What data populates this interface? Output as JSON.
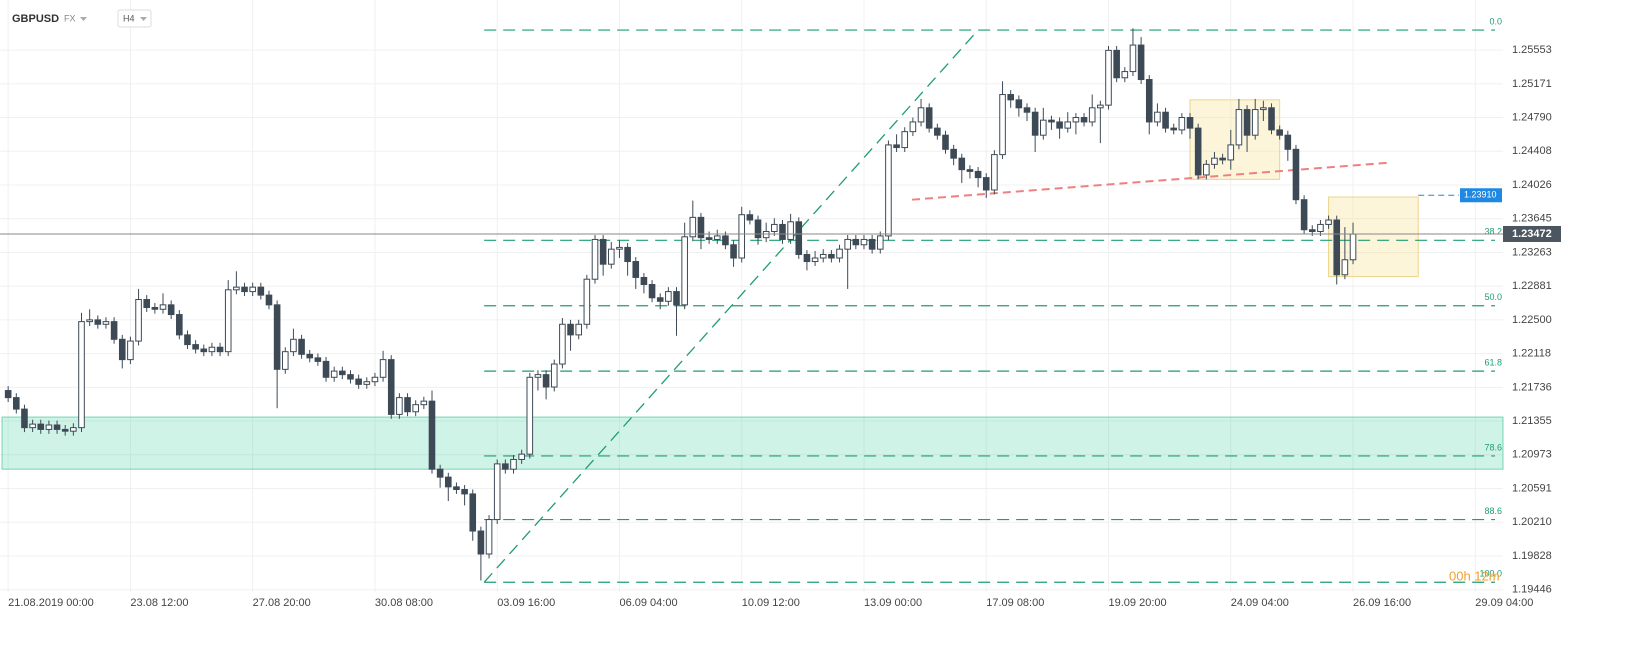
{
  "header": {
    "symbol": "GBPUSD",
    "market": "FX",
    "interval": "H4"
  },
  "chart_data": {
    "type": "candlestick",
    "xlim": [
      -1,
      183.4
    ],
    "ylim": [
      1.1942,
      1.2612
    ],
    "grid": true,
    "up_color": "#ffffff",
    "down_color": "#3d4a56",
    "xticks": [
      {
        "value": 0,
        "label": "21.08.2019 00:00"
      },
      {
        "value": 15,
        "label": "23.08 12:00"
      },
      {
        "value": 30,
        "label": "27.08 20:00"
      },
      {
        "value": 45,
        "label": "30.08 08:00"
      },
      {
        "value": 60,
        "label": "03.09 16:00"
      },
      {
        "value": 75,
        "label": "06.09 04:00"
      },
      {
        "value": 90,
        "label": "10.09 12:00"
      },
      {
        "value": 105,
        "label": "13.09 00:00"
      },
      {
        "value": 120,
        "label": "17.09 08:00"
      },
      {
        "value": 135,
        "label": "19.09 20:00"
      },
      {
        "value": 150,
        "label": "24.09 04:00"
      },
      {
        "value": 165,
        "label": "26.09 16:00"
      },
      {
        "value": 180,
        "label": "29.09 04:00"
      }
    ],
    "yticks": [
      1.25553,
      1.25171,
      {
        "value": 1.2479,
        "label": "1.24790"
      },
      1.24408,
      1.24026,
      1.23645,
      1.23263,
      1.22881,
      {
        "value": 1.225,
        "label": "1.22500"
      },
      1.22118,
      1.21736,
      1.21355,
      1.20973,
      1.20591,
      {
        "value": 1.2021,
        "label": "1.20210"
      },
      1.19828,
      1.19446
    ],
    "candles": [
      [
        1.217,
        1.2175,
        1.2157,
        1.2162
      ],
      [
        1.2162,
        1.2167,
        1.2144,
        1.2149
      ],
      [
        1.2149,
        1.2154,
        1.2123,
        1.2128
      ],
      [
        1.2128,
        1.2137,
        1.2123,
        1.2132
      ],
      [
        1.2132,
        1.2137,
        1.2121,
        1.2126
      ],
      [
        1.2126,
        1.2136,
        1.2121,
        1.2131
      ],
      [
        1.2131,
        1.2136,
        1.2121,
        1.2126
      ],
      [
        1.2126,
        1.2131,
        1.2119,
        1.2124
      ],
      [
        1.2124,
        1.2133,
        1.2119,
        1.2128
      ],
      [
        1.2128,
        1.2258,
        1.2123,
        1.2248
      ],
      [
        1.2248,
        1.2262,
        1.2243,
        1.225
      ],
      [
        1.225,
        1.2255,
        1.224,
        1.2245
      ],
      [
        1.2245,
        1.2253,
        1.224,
        1.2248
      ],
      [
        1.2248,
        1.2253,
        1.2223,
        1.2228
      ],
      [
        1.2228,
        1.2233,
        1.2195,
        1.2205
      ],
      [
        1.2205,
        1.2231,
        1.22,
        1.2226
      ],
      [
        1.2226,
        1.2285,
        1.2221,
        1.2273
      ],
      [
        1.2273,
        1.2278,
        1.2259,
        1.2264
      ],
      [
        1.2264,
        1.2269,
        1.2257,
        1.2262
      ],
      [
        1.2262,
        1.228,
        1.2257,
        1.2267
      ],
      [
        1.2267,
        1.2272,
        1.2251,
        1.2256
      ],
      [
        1.2256,
        1.2261,
        1.2228,
        1.2233
      ],
      [
        1.2233,
        1.2238,
        1.2217,
        1.2222
      ],
      [
        1.2222,
        1.2227,
        1.2212,
        1.2217
      ],
      [
        1.2217,
        1.2222,
        1.2209,
        1.2214
      ],
      [
        1.2214,
        1.2224,
        1.2209,
        1.2219
      ],
      [
        1.2219,
        1.2224,
        1.2209,
        1.2214
      ],
      [
        1.2214,
        1.2295,
        1.2209,
        1.2284
      ],
      [
        1.2284,
        1.2305,
        1.2279,
        1.2287
      ],
      [
        1.2287,
        1.2292,
        1.2277,
        1.2282
      ],
      [
        1.2282,
        1.2292,
        1.2277,
        1.2287
      ],
      [
        1.2287,
        1.2292,
        1.2273,
        1.2278
      ],
      [
        1.2278,
        1.2283,
        1.2262,
        1.2267
      ],
      [
        1.2267,
        1.2272,
        1.215,
        1.2194
      ],
      [
        1.2194,
        1.2219,
        1.2189,
        1.2214
      ],
      [
        1.2214,
        1.224,
        1.2209,
        1.2228
      ],
      [
        1.2228,
        1.2233,
        1.2206,
        1.2211
      ],
      [
        1.2211,
        1.2216,
        1.2202,
        1.2207
      ],
      [
        1.2207,
        1.2212,
        1.2198,
        1.2203
      ],
      [
        1.2203,
        1.2208,
        1.218,
        1.2185
      ],
      [
        1.2185,
        1.2197,
        1.218,
        1.2192
      ],
      [
        1.2192,
        1.2197,
        1.2183,
        1.2188
      ],
      [
        1.2188,
        1.2193,
        1.2178,
        1.2183
      ],
      [
        1.2183,
        1.2188,
        1.2172,
        1.2177
      ],
      [
        1.2177,
        1.2185,
        1.2172,
        1.218
      ],
      [
        1.218,
        1.219,
        1.2175,
        1.2185
      ],
      [
        1.2185,
        1.2215,
        1.218,
        1.2205
      ],
      [
        1.2205,
        1.221,
        1.2138,
        1.2143
      ],
      [
        1.2143,
        1.2167,
        1.2138,
        1.2162
      ],
      [
        1.2162,
        1.2167,
        1.2141,
        1.2146
      ],
      [
        1.2146,
        1.2159,
        1.2141,
        1.2154
      ],
      [
        1.2154,
        1.2163,
        1.2149,
        1.2158
      ],
      [
        1.2158,
        1.217,
        1.2076,
        1.2081
      ],
      [
        1.2081,
        1.2086,
        1.206,
        1.2072
      ],
      [
        1.2072,
        1.2077,
        1.2045,
        1.2061
      ],
      [
        1.2061,
        1.2066,
        1.2053,
        1.2058
      ],
      [
        1.2058,
        1.2063,
        1.204,
        1.2053
      ],
      [
        1.2053,
        1.2058,
        1.2,
        1.2011
      ],
      [
        1.2011,
        1.2016,
        1.1955,
        1.1985
      ],
      [
        1.1985,
        1.2029,
        1.198,
        1.2024
      ],
      [
        1.2024,
        1.2092,
        1.2019,
        1.2087
      ],
      [
        1.2087,
        1.2092,
        1.2076,
        1.2081
      ],
      [
        1.2081,
        1.2097,
        1.2076,
        1.2092
      ],
      [
        1.2092,
        1.2103,
        1.2087,
        1.2098
      ],
      [
        1.2098,
        1.219,
        1.2093,
        1.2185
      ],
      [
        1.2185,
        1.2193,
        1.217,
        1.2188
      ],
      [
        1.2188,
        1.2193,
        1.216,
        1.2174
      ],
      [
        1.2174,
        1.2205,
        1.2169,
        1.22
      ],
      [
        1.22,
        1.2252,
        1.2195,
        1.2245
      ],
      [
        1.2245,
        1.225,
        1.2215,
        1.2233
      ],
      [
        1.2233,
        1.225,
        1.2228,
        1.2245
      ],
      [
        1.2245,
        1.2301,
        1.224,
        1.2296
      ],
      [
        1.2296,
        1.2346,
        1.2291,
        1.2341
      ],
      [
        1.2341,
        1.2346,
        1.23,
        1.2313
      ],
      [
        1.2313,
        1.2338,
        1.2308,
        1.233
      ],
      [
        1.233,
        1.234,
        1.232,
        1.2332
      ],
      [
        1.2332,
        1.2337,
        1.23,
        1.2316
      ],
      [
        1.2316,
        1.2321,
        1.2285,
        1.2298
      ],
      [
        1.2298,
        1.2303,
        1.228,
        1.229
      ],
      [
        1.229,
        1.2295,
        1.227,
        1.2275
      ],
      [
        1.2275,
        1.228,
        1.2262,
        1.2271
      ],
      [
        1.2271,
        1.2287,
        1.2266,
        1.2282
      ],
      [
        1.2282,
        1.2287,
        1.2232,
        1.2267
      ],
      [
        1.2267,
        1.236,
        1.2262,
        1.2344
      ],
      [
        1.2344,
        1.2385,
        1.2339,
        1.2366
      ],
      [
        1.2366,
        1.2371,
        1.233,
        1.2343
      ],
      [
        1.2343,
        1.235,
        1.2336,
        1.2341
      ],
      [
        1.2341,
        1.2352,
        1.2336,
        1.2345
      ],
      [
        1.2345,
        1.235,
        1.233,
        1.2335
      ],
      [
        1.2335,
        1.234,
        1.231,
        1.232
      ],
      [
        1.232,
        1.2378,
        1.2315,
        1.2369
      ],
      [
        1.2369,
        1.2374,
        1.2358,
        1.2363
      ],
      [
        1.2363,
        1.2368,
        1.2335,
        1.2343
      ],
      [
        1.2343,
        1.236,
        1.2338,
        1.235
      ],
      [
        1.235,
        1.2365,
        1.2345,
        1.2358
      ],
      [
        1.2358,
        1.2363,
        1.2336,
        1.2341
      ],
      [
        1.2341,
        1.237,
        1.2336,
        1.2361
      ],
      [
        1.2361,
        1.2366,
        1.2319,
        1.2324
      ],
      [
        1.2324,
        1.2329,
        1.2306,
        1.2316
      ],
      [
        1.2316,
        1.2328,
        1.2311,
        1.232
      ],
      [
        1.232,
        1.233,
        1.2315,
        1.2324
      ],
      [
        1.2324,
        1.2329,
        1.2315,
        1.232
      ],
      [
        1.232,
        1.2335,
        1.2315,
        1.233
      ],
      [
        1.233,
        1.2346,
        1.2285,
        1.2341
      ],
      [
        1.2341,
        1.2346,
        1.233,
        1.2335
      ],
      [
        1.2335,
        1.2346,
        1.233,
        1.2341
      ],
      [
        1.2341,
        1.2346,
        1.2325,
        1.233
      ],
      [
        1.233,
        1.235,
        1.2325,
        1.2345
      ],
      [
        1.2345,
        1.2453,
        1.234,
        1.2448
      ],
      [
        1.2448,
        1.246,
        1.244,
        1.2445
      ],
      [
        1.2445,
        1.2468,
        1.244,
        1.2463
      ],
      [
        1.2463,
        1.2479,
        1.2458,
        1.2474
      ],
      [
        1.2474,
        1.25,
        1.2469,
        1.249
      ],
      [
        1.249,
        1.2495,
        1.2462,
        1.2467
      ],
      [
        1.2467,
        1.2472,
        1.2454,
        1.2459
      ],
      [
        1.2459,
        1.2464,
        1.2438,
        1.2443
      ],
      [
        1.2443,
        1.2448,
        1.2425,
        1.2433
      ],
      [
        1.2433,
        1.2438,
        1.2405,
        1.242
      ],
      [
        1.242,
        1.2425,
        1.241,
        1.2418
      ],
      [
        1.2418,
        1.2423,
        1.24,
        1.2411
      ],
      [
        1.2411,
        1.2416,
        1.2388,
        1.2397
      ],
      [
        1.2397,
        1.2442,
        1.2392,
        1.2437
      ],
      [
        1.2437,
        1.252,
        1.2432,
        1.2505
      ],
      [
        1.2505,
        1.251,
        1.249,
        1.2499
      ],
      [
        1.2499,
        1.2504,
        1.248,
        1.249
      ],
      [
        1.249,
        1.2495,
        1.2475,
        1.2485
      ],
      [
        1.2485,
        1.249,
        1.244,
        1.2459
      ],
      [
        1.2459,
        1.249,
        1.2454,
        1.2476
      ],
      [
        1.2476,
        1.2481,
        1.2465,
        1.2474
      ],
      [
        1.2474,
        1.2479,
        1.2455,
        1.2467
      ],
      [
        1.2467,
        1.2485,
        1.2462,
        1.2474
      ],
      [
        1.2474,
        1.2484,
        1.246,
        1.2479
      ],
      [
        1.2479,
        1.2484,
        1.2469,
        1.2474
      ],
      [
        1.2474,
        1.2505,
        1.2469,
        1.249
      ],
      [
        1.249,
        1.2498,
        1.245,
        1.2493
      ],
      [
        1.2493,
        1.256,
        1.2488,
        1.2555
      ],
      [
        1.2555,
        1.256,
        1.2519,
        1.2524
      ],
      [
        1.2524,
        1.2536,
        1.2519,
        1.2531
      ],
      [
        1.2531,
        1.258,
        1.2526,
        1.2561
      ],
      [
        1.2561,
        1.257,
        1.2517,
        1.2522
      ],
      [
        1.2522,
        1.2527,
        1.246,
        1.2474
      ],
      [
        1.2474,
        1.2495,
        1.2469,
        1.2485
      ],
      [
        1.2485,
        1.249,
        1.2462,
        1.2467
      ],
      [
        1.2467,
        1.2472,
        1.246,
        1.2465
      ],
      [
        1.2465,
        1.2484,
        1.246,
        1.2479
      ],
      [
        1.2479,
        1.2484,
        1.2455,
        1.2467
      ],
      [
        1.2467,
        1.2472,
        1.2409,
        1.2414
      ],
      [
        1.2414,
        1.2431,
        1.2409,
        1.2426
      ],
      [
        1.2426,
        1.244,
        1.2421,
        1.2433
      ],
      [
        1.2433,
        1.2438,
        1.2426,
        1.2431
      ],
      [
        1.2431,
        1.2465,
        1.242,
        1.2448
      ],
      [
        1.2448,
        1.25,
        1.2443,
        1.2488
      ],
      [
        1.2488,
        1.2493,
        1.244,
        1.2459
      ],
      [
        1.2459,
        1.25,
        1.2454,
        1.2488
      ],
      [
        1.2488,
        1.2498,
        1.2475,
        1.249
      ],
      [
        1.249,
        1.2495,
        1.246,
        1.2465
      ],
      [
        1.2465,
        1.247,
        1.2454,
        1.2459
      ],
      [
        1.2459,
        1.2464,
        1.243,
        1.2443
      ],
      [
        1.2443,
        1.2448,
        1.2381,
        1.2386
      ],
      [
        1.2386,
        1.2391,
        1.2347,
        1.2352
      ],
      [
        1.2352,
        1.2357,
        1.2345,
        1.235
      ],
      [
        1.235,
        1.2363,
        1.2345,
        1.2358
      ],
      [
        1.2358,
        1.2368,
        1.2353,
        1.2363
      ],
      [
        1.2363,
        1.2368,
        1.229,
        1.2301
      ],
      [
        1.2301,
        1.2355,
        1.2296,
        1.2318
      ],
      [
        1.2318,
        1.236,
        1.2313,
        1.2347
      ]
    ],
    "last_price": 1.23472,
    "alert_level": {
      "value": 1.2391,
      "label": "1.23910",
      "x": [
        173,
        178
      ]
    },
    "fibonacci": {
      "from": 58.4,
      "levels": [
        {
          "label": "0.0",
          "price": 1.2578
        },
        {
          "label": "38.2",
          "price": 1.234
        },
        {
          "label": "50.0",
          "price": 1.2266
        },
        {
          "label": "61.8",
          "price": 1.2192
        },
        {
          "label": "78.6",
          "price": 1.2096
        },
        {
          "label": "88.6",
          "price": 1.2024
        },
        {
          "label": "100.0",
          "price": 1.1953
        }
      ]
    },
    "zone": {
      "y": [
        1.2081,
        1.214
      ]
    },
    "trendline": {
      "x": [
        110.9,
        169.6
      ],
      "y": [
        1.2386,
        1.2428
      ]
    },
    "diagonal": {
      "x": [
        58.4,
        119
      ],
      "y": [
        1.1953,
        1.2578
      ]
    },
    "boxes": [
      {
        "x": [
          145,
          156
        ],
        "y": [
          1.2409,
          1.2499
        ]
      },
      {
        "x": [
          162,
          173
        ],
        "y": [
          1.2299,
          1.2389
        ]
      }
    ],
    "timer": "00h 12m"
  }
}
